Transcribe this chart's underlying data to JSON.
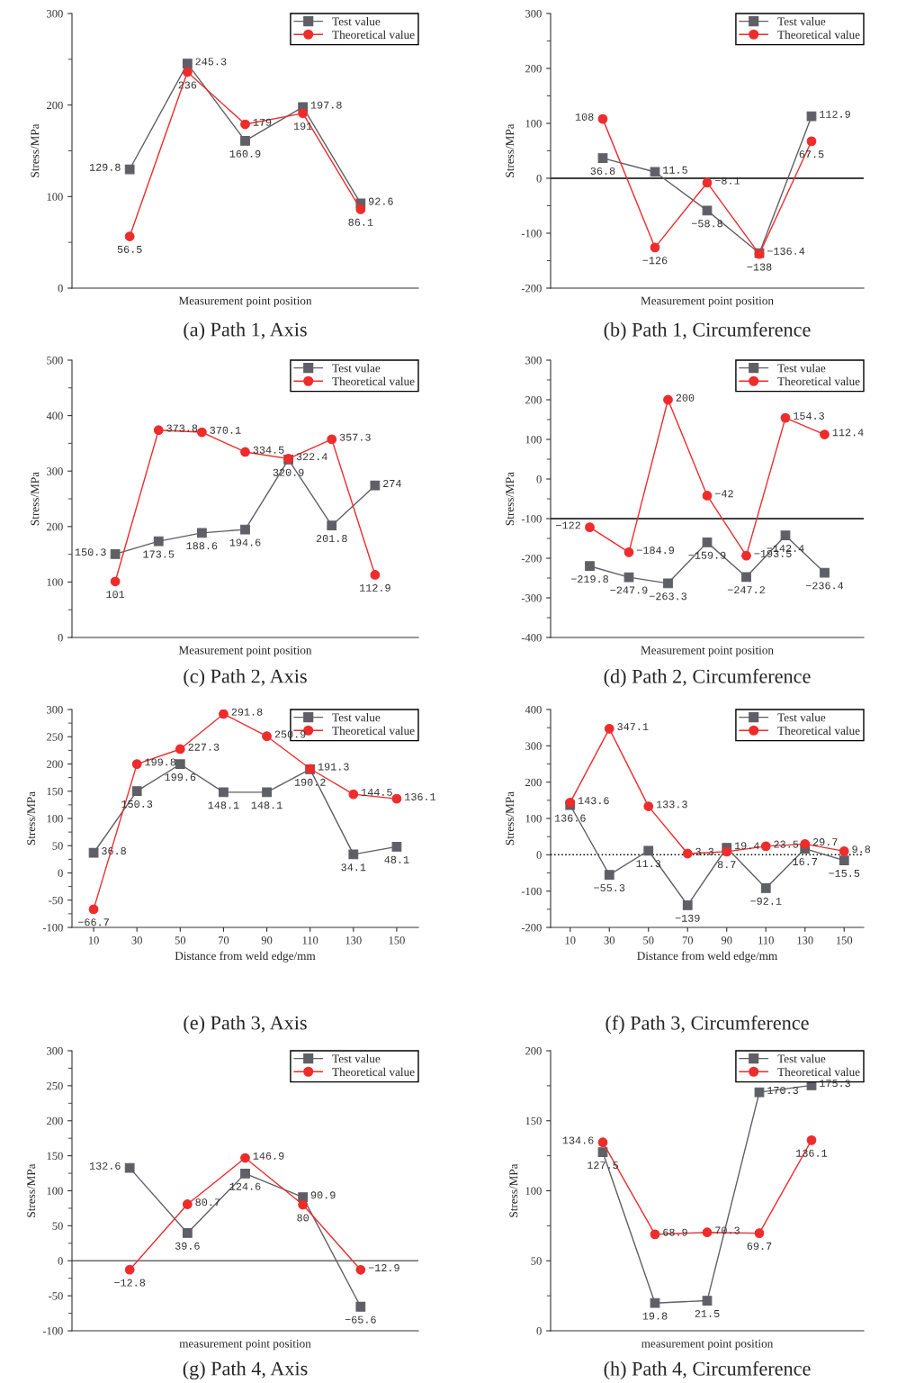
{
  "chart_data": [
    {
      "type": "line",
      "title": "(a) Path 1, Axis",
      "xlabel": "Measurement point position",
      "ylabel": "Stress/MPa",
      "categories": [
        null,
        null,
        null,
        null,
        null
      ],
      "ylim": [
        0,
        300
      ],
      "yticks": [
        0,
        100,
        200,
        300
      ],
      "tick_labels": "y",
      "legend": "top right",
      "data_labels": true,
      "series": [
        {
          "name": "Test value",
          "color": "#5f5f66",
          "marker": "square",
          "values": [
            129.8,
            245.3,
            160.9,
            197.8,
            92.6
          ]
        },
        {
          "name": "Theoretical value",
          "color": "#ee2c2c",
          "marker": "circle",
          "values": [
            56.5,
            236,
            179,
            191,
            86.1
          ]
        }
      ]
    },
    {
      "type": "line",
      "title": "(b) Path 1, Circumference",
      "xlabel": "Measurement point position",
      "ylabel": "Stress/MPa",
      "categories": [
        null,
        null,
        null,
        null,
        null
      ],
      "ylim": [
        -200,
        300
      ],
      "yticks": [
        -200,
        -100,
        0,
        100,
        200,
        300
      ],
      "tick_labels": "y",
      "legend": "top right",
      "data_labels": true,
      "ref_lines": [
        {
          "axis": "y",
          "value": 0,
          "color": "#000000"
        }
      ],
      "series": [
        {
          "name": "Test value",
          "color": "#5f5f66",
          "marker": "square",
          "values": [
            36.8,
            11.5,
            -58.8,
            -136.4,
            112.9
          ]
        },
        {
          "name": "Theoretical value",
          "color": "#ee2c2c",
          "marker": "circle",
          "values": [
            108,
            -126,
            -8.1,
            -138,
            67.5
          ]
        }
      ]
    },
    {
      "type": "line",
      "title": "(c) Path 2, Axis",
      "xlabel": "Measurement point position",
      "ylabel": "Stress/MPa",
      "categories": [
        null,
        null,
        null,
        null,
        null,
        null,
        null
      ],
      "ylim": [
        0,
        500
      ],
      "yticks": [
        0,
        100,
        200,
        300,
        400,
        500
      ],
      "tick_labels": "y",
      "legend": "top right",
      "data_labels": true,
      "series": [
        {
          "name": "Test vulae",
          "color": "#5f5f66",
          "marker": "square",
          "values": [
            150.3,
            173.5,
            188.6,
            194.6,
            320.9,
            201.8,
            274
          ]
        },
        {
          "name": "Theoretical value",
          "color": "#ee2c2c",
          "marker": "circle",
          "values": [
            101,
            373.8,
            370.1,
            334.5,
            322.4,
            357.3,
            112.9
          ]
        }
      ]
    },
    {
      "type": "line",
      "title": "(d) Path 2, Circumference",
      "xlabel": "Measurement point position",
      "ylabel": "Stress/MPa",
      "categories": [
        null,
        null,
        null,
        null,
        null,
        null,
        null
      ],
      "ylim": [
        -400,
        300
      ],
      "yticks": [
        -400,
        -300,
        -200,
        -100,
        0,
        100,
        200,
        300
      ],
      "tick_labels": "y",
      "legend": "top right",
      "data_labels": true,
      "ref_lines": [
        {
          "axis": "y",
          "value": -100,
          "color": "#000000"
        }
      ],
      "series": [
        {
          "name": "Test vulae",
          "color": "#5f5f66",
          "marker": "square",
          "values": [
            -219.8,
            -247.9,
            -263.3,
            -159.9,
            -247.2,
            -142.4,
            -236.4
          ]
        },
        {
          "name": "Theoretical value",
          "color": "#ee2c2c",
          "marker": "circle",
          "values": [
            -122,
            -184.9,
            200,
            -42,
            -193.5,
            154.3,
            112.4
          ]
        }
      ]
    },
    {
      "type": "line",
      "title": "(e) Path 3, Axis",
      "xlabel": "Distance from weld edge/mm",
      "ylabel": "Stress/MPa",
      "x": [
        10,
        30,
        50,
        70,
        90,
        110,
        130,
        150
      ],
      "xlim": [
        0,
        160
      ],
      "xticks": [
        10,
        30,
        50,
        70,
        90,
        110,
        130,
        150
      ],
      "ylim": [
        -100,
        300
      ],
      "yticks": [
        -100,
        -50,
        0,
        50,
        100,
        150,
        200,
        250,
        300
      ],
      "legend": "top right",
      "data_labels": true,
      "series": [
        {
          "name": "Test value",
          "color": "#5f5f66",
          "marker": "square",
          "values": [
            36.8,
            150.3,
            199.6,
            148.1,
            148.1,
            190.2,
            34.1,
            48.1
          ]
        },
        {
          "name": "Theoretical value",
          "color": "#ee2c2c",
          "marker": "circle",
          "values": [
            -66.7,
            199.8,
            227.3,
            291.8,
            250.9,
            191.3,
            144.5,
            136.1
          ]
        }
      ]
    },
    {
      "type": "line",
      "title": "(f) Path 3, Circumference",
      "xlabel": "Distance from weld edge/mm",
      "ylabel": "Stress/MPa",
      "x": [
        10,
        30,
        50,
        70,
        90,
        110,
        130,
        150
      ],
      "xlim": [
        0,
        160
      ],
      "xticks": [
        10,
        30,
        50,
        70,
        90,
        110,
        130,
        150
      ],
      "ylim": [
        -200,
        400
      ],
      "yticks": [
        -200,
        -100,
        0,
        100,
        200,
        300,
        400
      ],
      "legend": "top right",
      "data_labels": true,
      "ref_lines": [
        {
          "axis": "y",
          "value": 0,
          "color": "#000000",
          "line_style": "dotted"
        }
      ],
      "series": [
        {
          "name": "Test value",
          "color": "#5f5f66",
          "marker": "square",
          "values": [
            136.6,
            -55.3,
            11.3,
            -139,
            19.4,
            -92.1,
            16.7,
            -15.5
          ]
        },
        {
          "name": "Theoretical value",
          "color": "#ee2c2c",
          "marker": "circle",
          "values": [
            143.6,
            347.1,
            133.3,
            3.3,
            8.7,
            23.5,
            29.7,
            9.8
          ]
        }
      ]
    },
    {
      "type": "line",
      "title": "(g) Path 4, Axis",
      "xlabel": "measurement point position",
      "ylabel": "Stress/MPa",
      "categories": [
        null,
        null,
        null,
        null,
        null
      ],
      "ylim": [
        -100,
        300
      ],
      "yticks": [
        -100,
        -50,
        0,
        50,
        100,
        150,
        200,
        250,
        300
      ],
      "tick_labels": "y",
      "legend": "top right",
      "data_labels": true,
      "ref_lines": [
        {
          "axis": "y",
          "value": 0,
          "color": "#666666"
        }
      ],
      "series": [
        {
          "name": "Test value",
          "color": "#5f5f66",
          "marker": "square",
          "values": [
            132.6,
            39.6,
            124.6,
            90.9,
            -65.6
          ]
        },
        {
          "name": "Theoretical value",
          "color": "#ee2c2c",
          "marker": "circle",
          "values": [
            -12.8,
            80.7,
            146.9,
            80,
            -12.9
          ]
        }
      ]
    },
    {
      "type": "line",
      "title": "(h) Path 4, Circumference",
      "xlabel": "measurement point position",
      "ylabel": "Stress/MPa",
      "categories": [
        null,
        null,
        null,
        null,
        null
      ],
      "ylim": [
        0,
        200
      ],
      "yticks": [
        0,
        50,
        100,
        150,
        200
      ],
      "tick_labels": "y",
      "legend": "top right",
      "data_labels": true,
      "series": [
        {
          "name": "Test value",
          "color": "#5f5f66",
          "marker": "square",
          "values": [
            127.5,
            19.8,
            21.5,
            170.3,
            175.3
          ]
        },
        {
          "name": "Theoretical value",
          "color": "#ee2c2c",
          "marker": "circle",
          "values": [
            134.6,
            68.9,
            70.3,
            69.7,
            136.1
          ]
        }
      ]
    }
  ]
}
